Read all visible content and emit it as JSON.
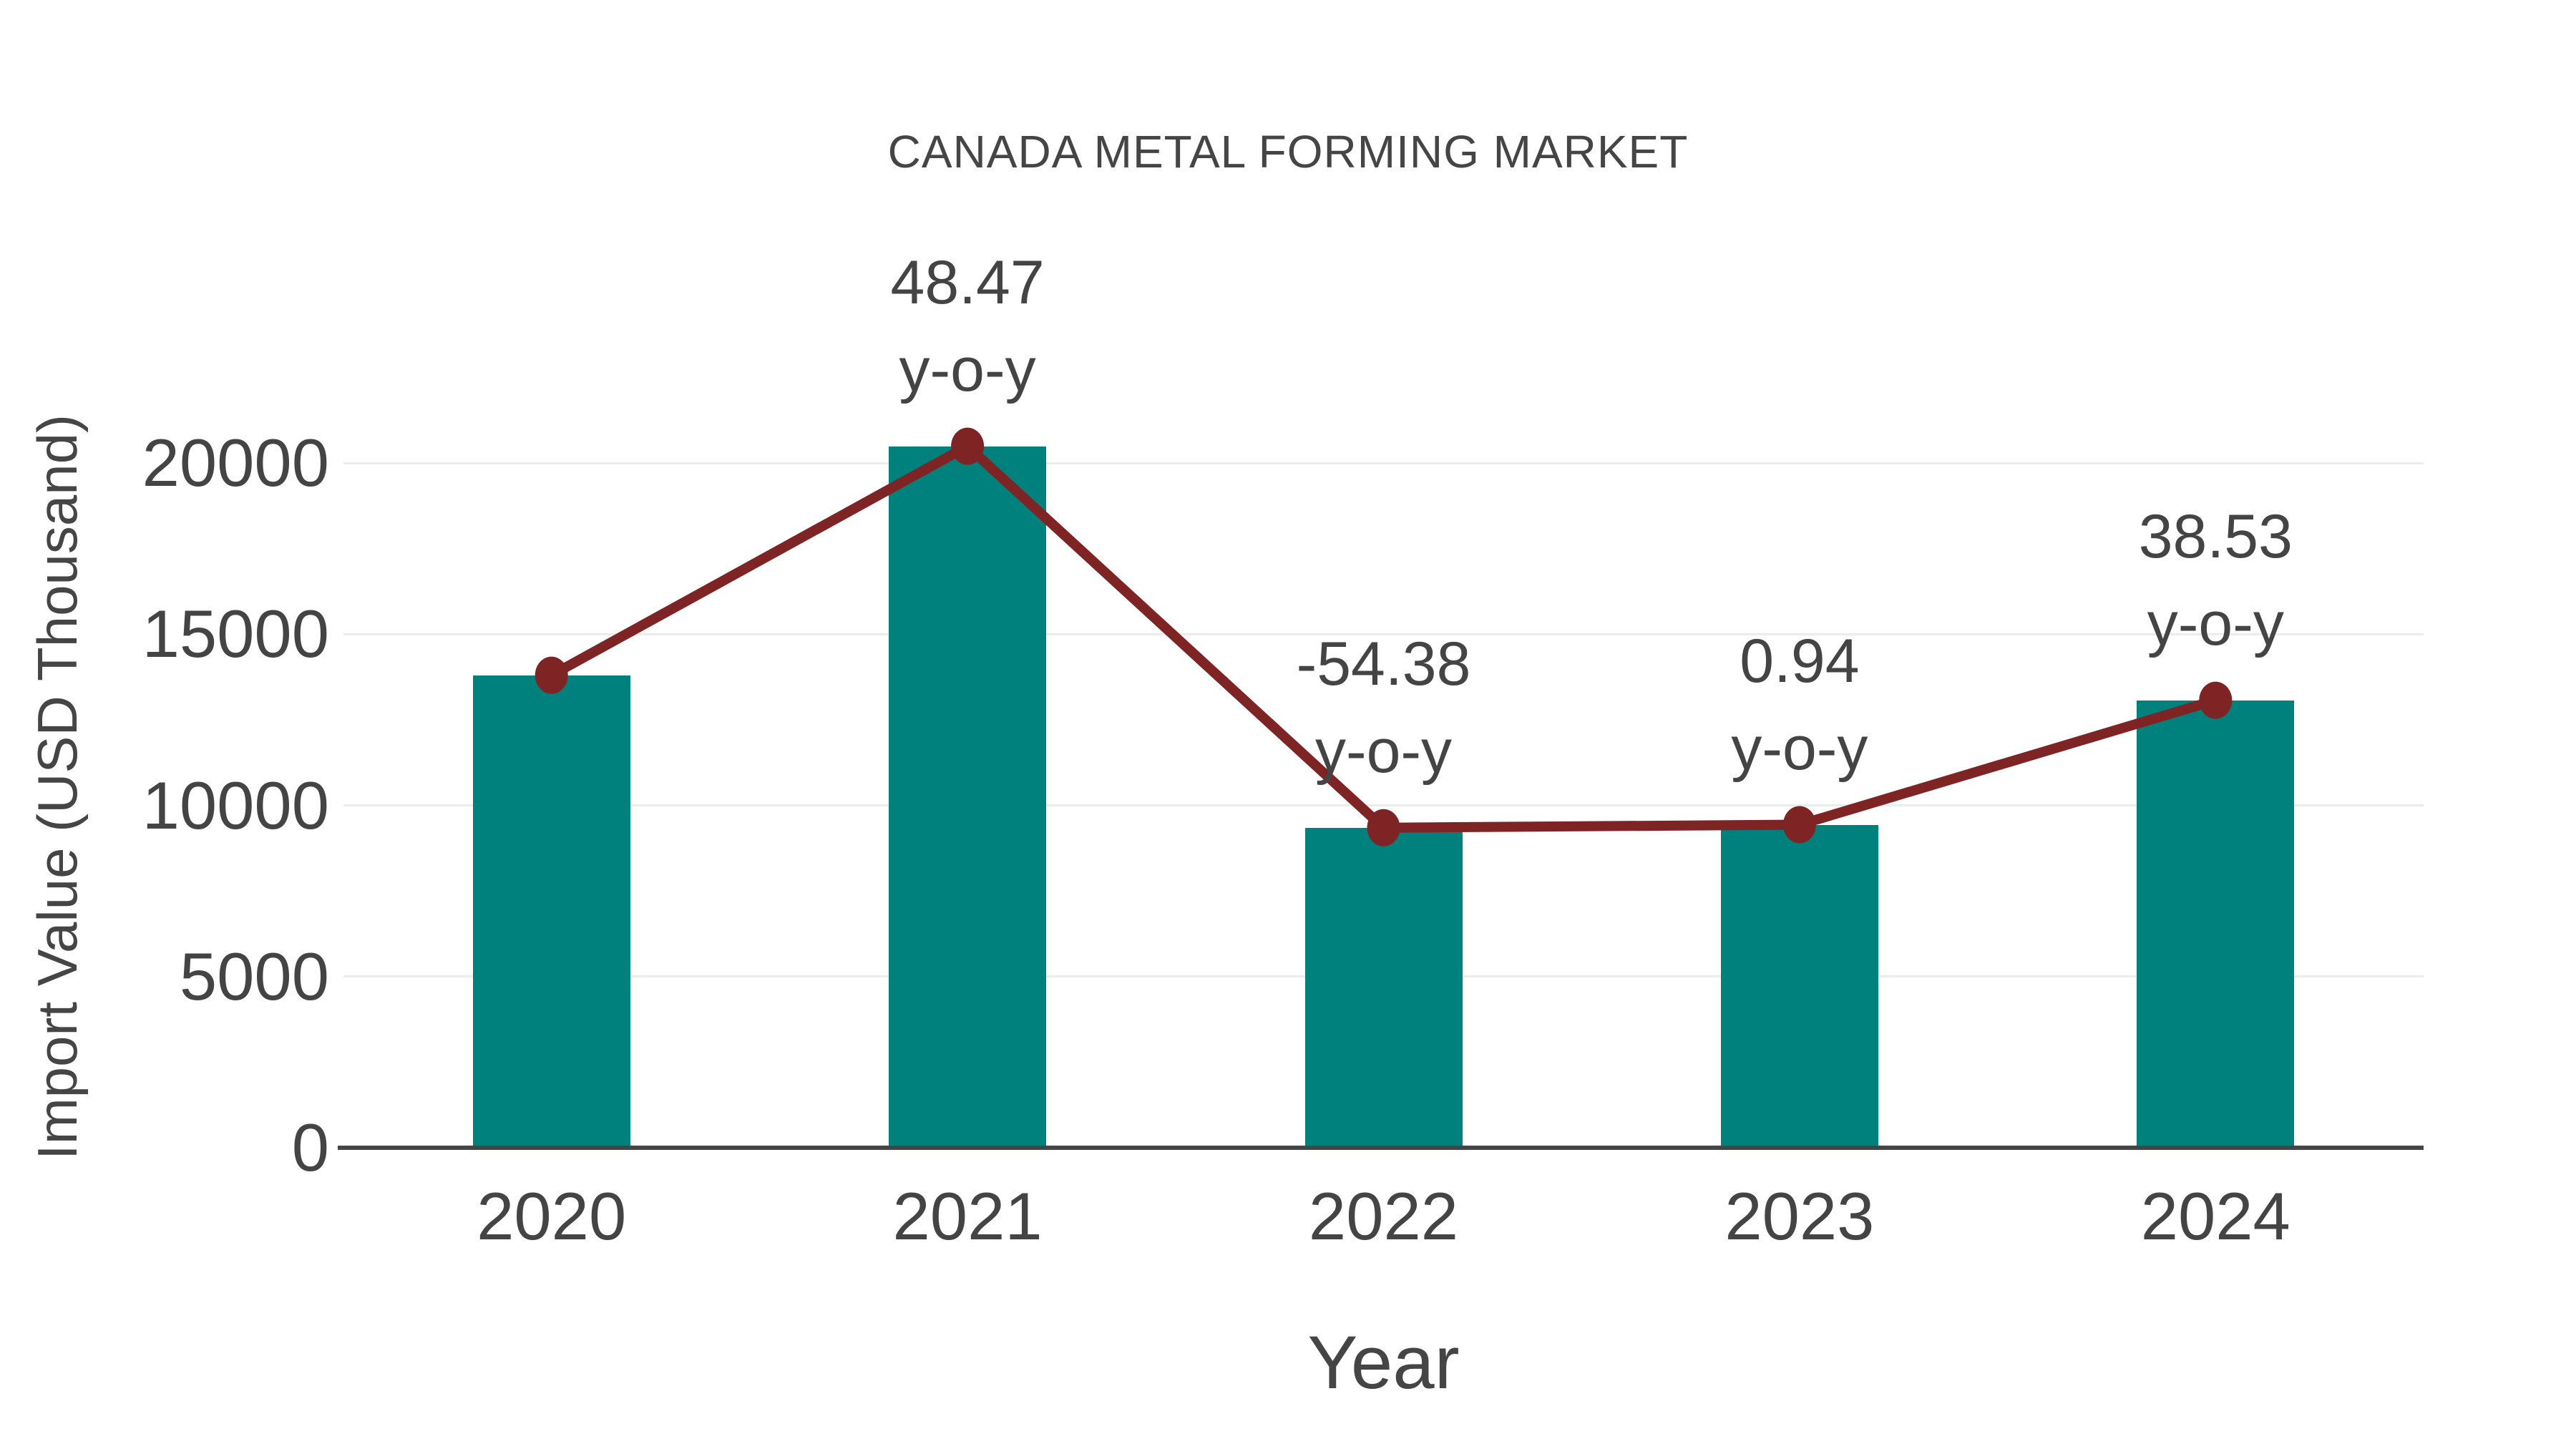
{
  "chart_data": {
    "type": "bar",
    "overlay": "line",
    "title": "CANADA METAL FORMING MARKET",
    "xlabel": "Year",
    "ylabel": "Import Value (USD Thousand)",
    "categories": [
      "2020",
      "2021",
      "2022",
      "2023",
      "2024"
    ],
    "values": [
      13800,
      20489,
      9347,
      9435,
      13070
    ],
    "yoy_percent": [
      null,
      48.47,
      -54.38,
      0.94,
      38.53
    ],
    "yoy_labels": [
      "",
      "48.47",
      "-54.38",
      "0.94",
      "38.53"
    ],
    "annotation_label": "y-o-y",
    "yticks": [
      0,
      5000,
      10000,
      15000,
      20000
    ],
    "ytick_labels": [
      "0",
      "5000",
      "10000",
      "15000",
      "20000"
    ],
    "ylim": [
      0,
      22000
    ],
    "grid": true,
    "legend": false,
    "colors": {
      "bar": "#00817E",
      "line": "#7F2424",
      "marker": "#7F2424",
      "text": "#444444",
      "title_text": "#454545",
      "gridline": "#ECECEC",
      "axis_line": "#454545",
      "background": "#FFFFFF"
    }
  }
}
